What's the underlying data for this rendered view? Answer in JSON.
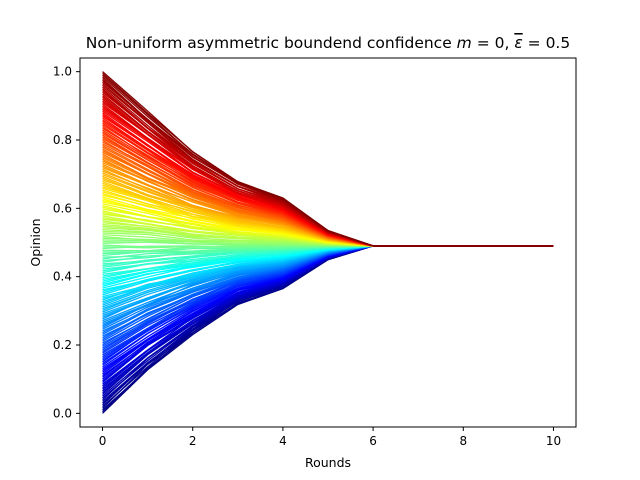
{
  "chart_data": {
    "type": "line",
    "title": {
      "text": "Non-uniform asymmetric boundend confidence ",
      "math_m": "m",
      "math_eq1": " = 0, ",
      "math_eps": "ε",
      "math_eq2": " = 0.5"
    },
    "xlabel": "Rounds",
    "ylabel": "Opinion",
    "xlim": [
      -0.5,
      10.5
    ],
    "ylim": [
      -0.04,
      1.04
    ],
    "xticks": [
      0,
      2,
      4,
      6,
      8,
      10
    ],
    "yticks": [
      0.0,
      0.2,
      0.4,
      0.6,
      0.8,
      1.0
    ],
    "xtick_labels": [
      "0",
      "2",
      "4",
      "6",
      "8",
      "10"
    ],
    "ytick_labels": [
      "0.0",
      "0.2",
      "0.4",
      "0.6",
      "0.8",
      "1.0"
    ],
    "grid": false,
    "colormap": "jet",
    "agents": 200,
    "rounds": [
      0,
      1,
      2,
      3,
      4,
      5,
      6,
      7,
      8,
      9,
      10
    ],
    "consensus_value": 0.49,
    "envelope_upper": [
      1.0,
      0.88,
      0.765,
      0.68,
      0.63,
      0.535,
      0.49,
      0.49,
      0.49,
      0.49,
      0.49
    ],
    "envelope_lower": [
      0.005,
      0.13,
      0.235,
      0.32,
      0.365,
      0.45,
      0.49,
      0.49,
      0.49,
      0.49,
      0.49
    ]
  }
}
